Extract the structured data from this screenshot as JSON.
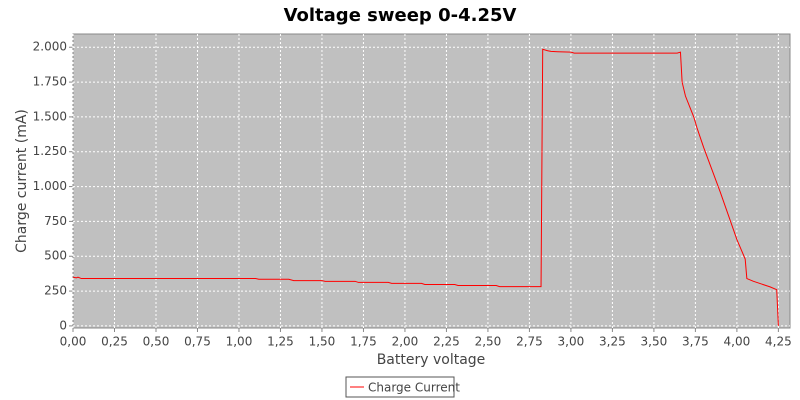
{
  "chart_data": {
    "type": "line",
    "title": "Voltage sweep 0-4.25V",
    "x_label": "Battery voltage",
    "y_label": "Charge current (mA)",
    "x": [
      0,
      0.02,
      0.03,
      0.05,
      1.1,
      1.12,
      1.3,
      1.33,
      1.5,
      1.52,
      1.7,
      1.72,
      1.9,
      1.92,
      2.1,
      2.12,
      2.3,
      2.32,
      2.55,
      2.57,
      2.82,
      2.83,
      2.86,
      2.88,
      2.92,
      3.0,
      3.02,
      3.64,
      3.66,
      3.67,
      3.69,
      3.72,
      3.74,
      3.76,
      3.8,
      3.85,
      3.9,
      3.95,
      4.0,
      4.05,
      4.06,
      4.1,
      4.2,
      4.24,
      4.25
    ],
    "series": [
      {
        "name": "Charge Current",
        "color": "#ff0000",
        "values": [
          350,
          345,
          350,
          340,
          340,
          335,
          335,
          325,
          325,
          320,
          320,
          312,
          312,
          305,
          305,
          297,
          297,
          290,
          290,
          282,
          282,
          1985,
          1975,
          1970,
          1968,
          1965,
          1958,
          1958,
          1965,
          1750,
          1650,
          1560,
          1500,
          1420,
          1280,
          1120,
          960,
          790,
          620,
          480,
          340,
          320,
          280,
          260,
          0
        ]
      }
    ],
    "xlim": [
      0,
      4.32
    ],
    "ylim": [
      -15,
      2095
    ],
    "xticks": [
      {
        "value": 0,
        "label": "0,00"
      },
      {
        "value": 0.25,
        "label": "0,25"
      },
      {
        "value": 0.5,
        "label": "0,50"
      },
      {
        "value": 0.75,
        "label": "0,75"
      },
      {
        "value": 1,
        "label": "1,00"
      },
      {
        "value": 1.25,
        "label": "1,25"
      },
      {
        "value": 1.5,
        "label": "1,50"
      },
      {
        "value": 1.75,
        "label": "1,75"
      },
      {
        "value": 2,
        "label": "2,00"
      },
      {
        "value": 2.25,
        "label": "2,25"
      },
      {
        "value": 2.5,
        "label": "2,50"
      },
      {
        "value": 2.75,
        "label": "2,75"
      },
      {
        "value": 3,
        "label": "3,00"
      },
      {
        "value": 3.25,
        "label": "3,25"
      },
      {
        "value": 3.5,
        "label": "3,50"
      },
      {
        "value": 3.75,
        "label": "3,75"
      },
      {
        "value": 4,
        "label": "4,00"
      },
      {
        "value": 4.25,
        "label": "4,25"
      }
    ],
    "yticks": [
      0,
      250,
      500,
      750,
      {
        "value": 1000,
        "label": "1.000"
      },
      {
        "value": 1250,
        "label": "1.250"
      },
      {
        "value": 1500,
        "label": "1.500"
      },
      {
        "value": 1750,
        "label": "1.750"
      },
      {
        "value": 2000,
        "label": "2.000"
      }
    ],
    "grid": true
  }
}
